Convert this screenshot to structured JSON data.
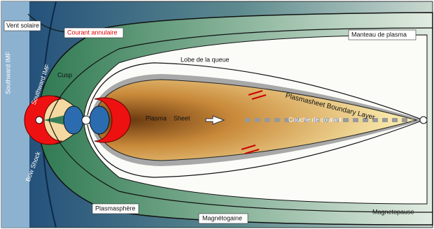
{
  "labels": {
    "solar_wind": "Vent solaire",
    "ring_current": "Courant annulaire",
    "plasma_mantle": "Manteau de plasma",
    "tail_lobe": "Lobe de la queue",
    "cusp": "Cusp",
    "southward_imf_1": "Southward IMF",
    "southward_imf_2": "Southward IMF",
    "bow_shock": "Bow Shock",
    "plasma": "Plasma",
    "sheet": "Sheet",
    "boundary_layer": "Plasmasheet Boundary Layer",
    "current_sheet": "Couche de courant",
    "plasmasphere": "Plasmasphère",
    "magnetosheath": "Magnétogaine",
    "magnetopause": "Magnetopause"
  }
}
